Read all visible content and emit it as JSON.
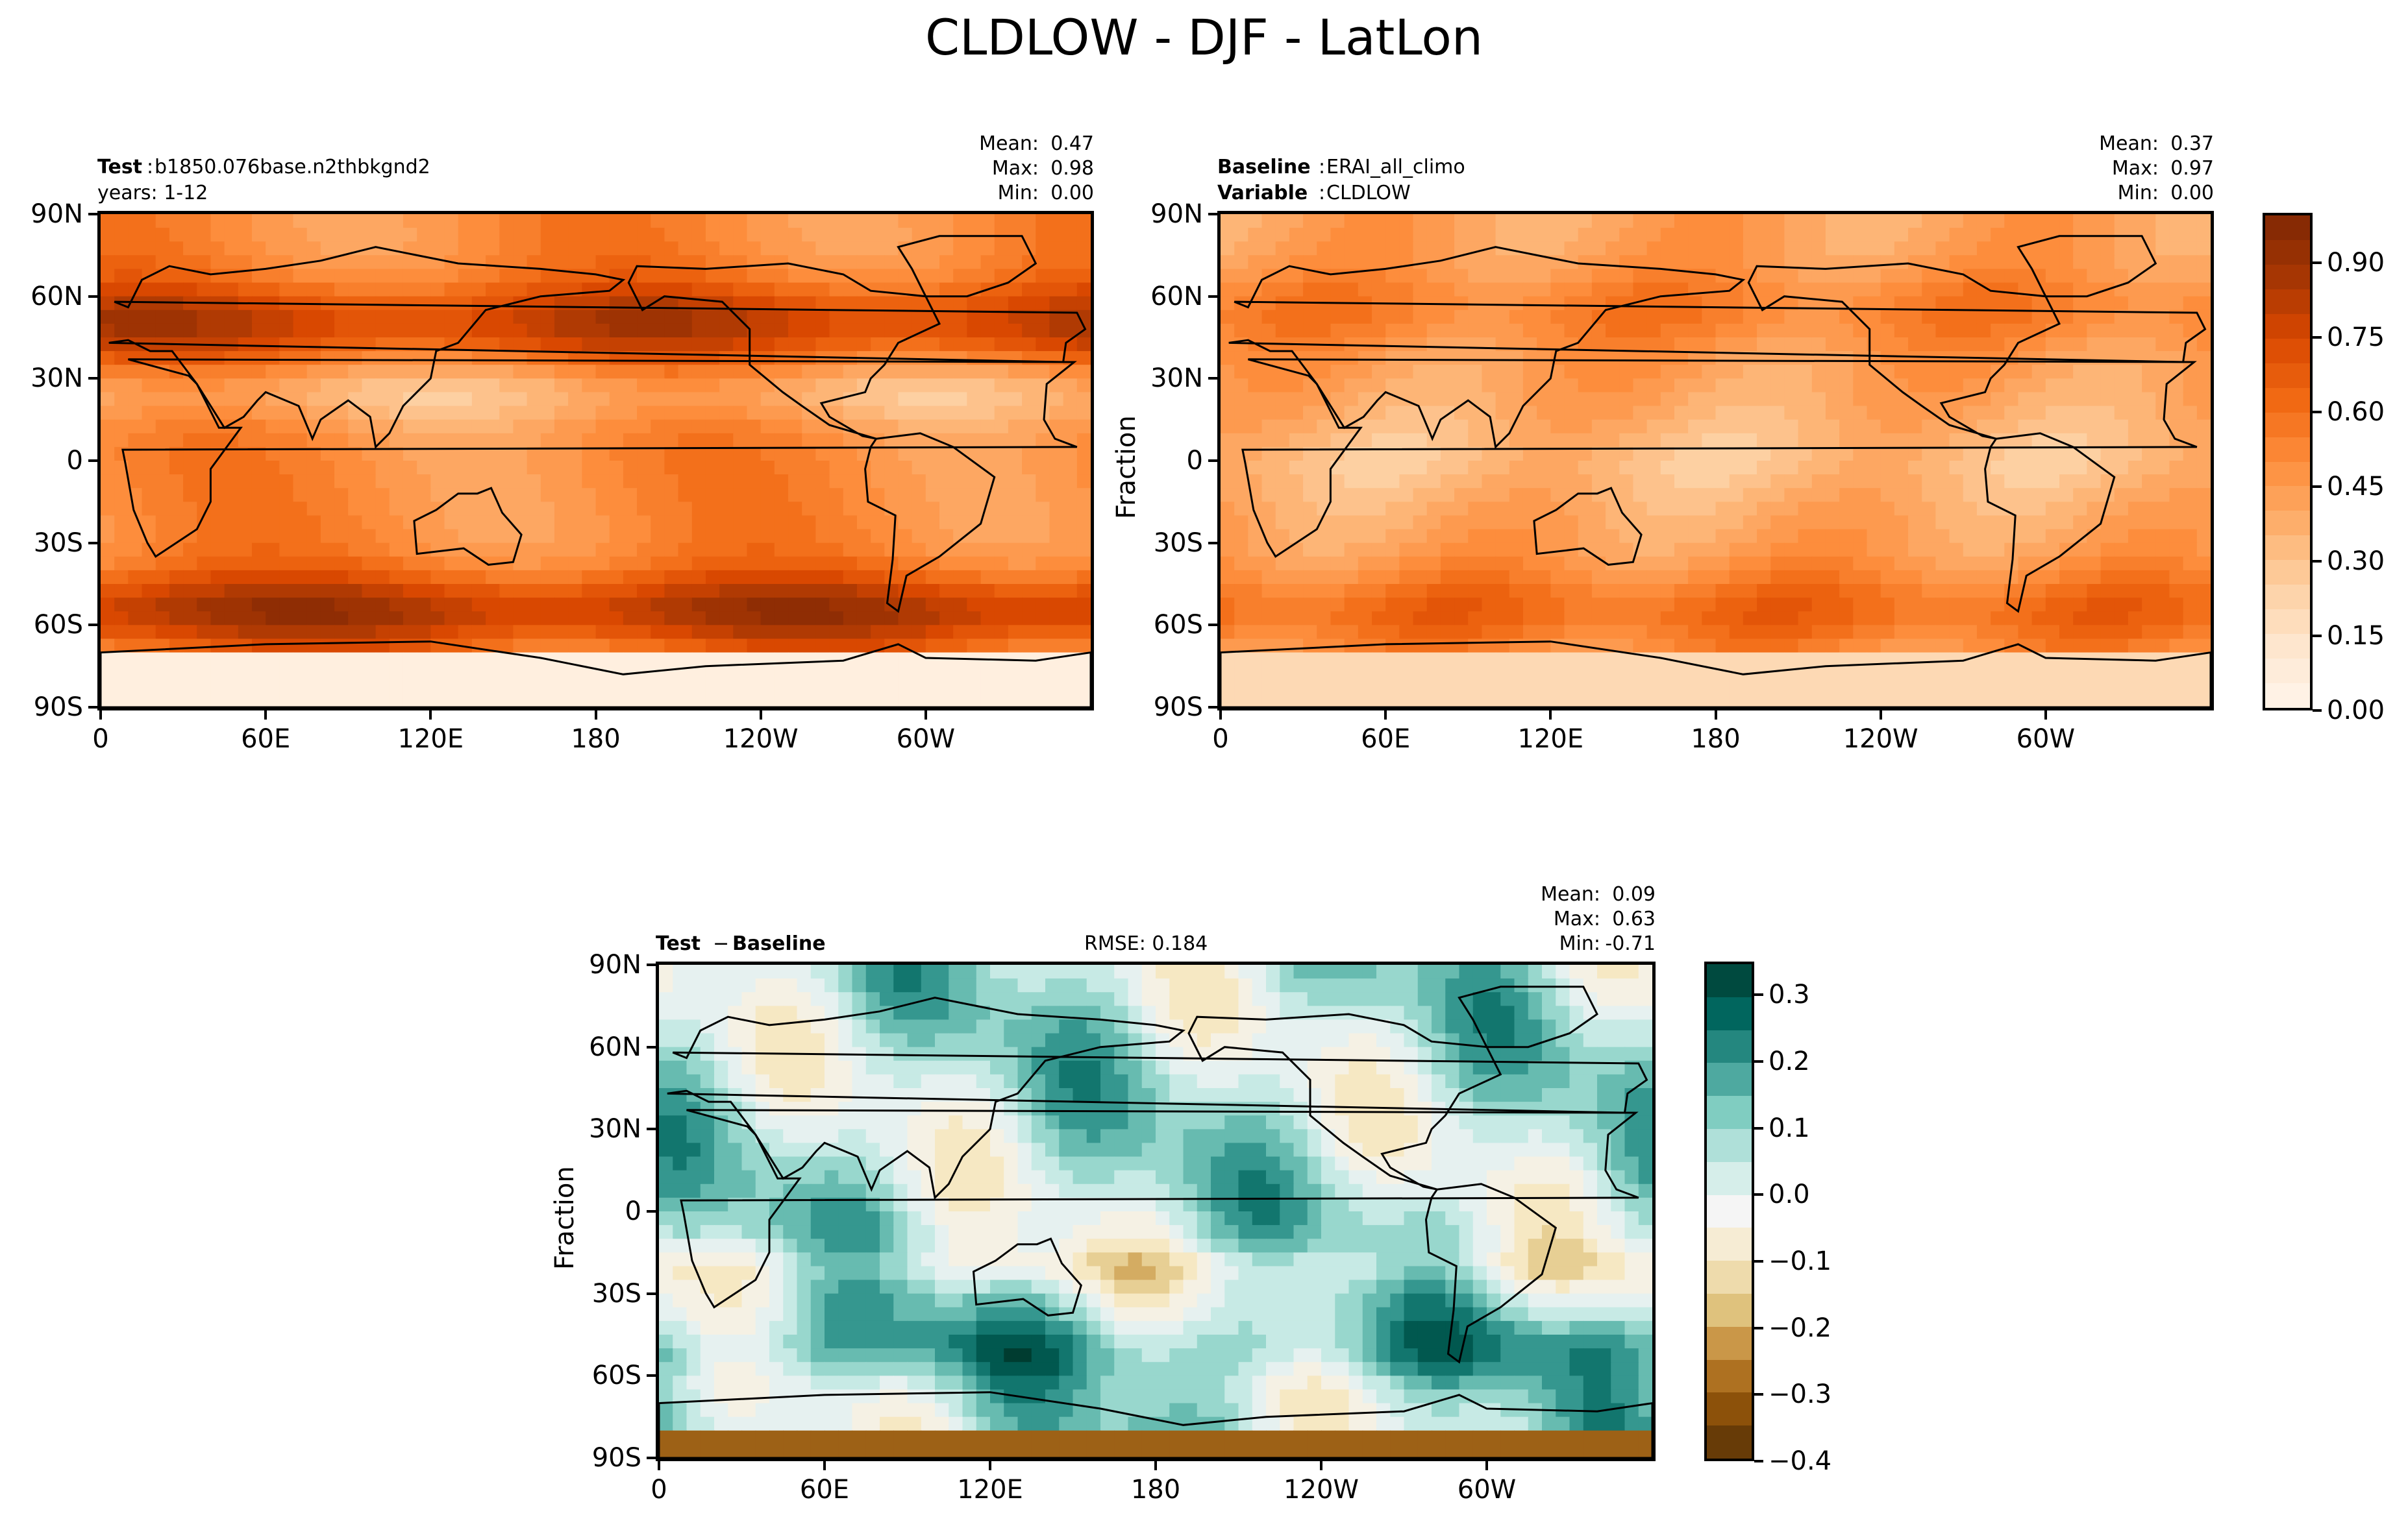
{
  "figure_title": "CLDLOW - DJF - LatLon",
  "chart_data": [
    {
      "type": "heatmap",
      "panel": "test",
      "header": {
        "label1": "Test",
        "value1": "b1850.076base.n2thbkgnd2",
        "line2": "years: 1-12"
      },
      "stats": {
        "mean_label": "Mean:",
        "mean": "0.47",
        "max_label": "Max:",
        "max": "0.98",
        "min_label": "Min:",
        "min": "0.00"
      },
      "x_ticks": [
        "0",
        "60E",
        "120E",
        "180",
        "120W",
        "60W"
      ],
      "y_ticks": [
        "90N",
        "60N",
        "30N",
        "0",
        "30S",
        "60S",
        "90S"
      ],
      "xlim": [
        0,
        360
      ],
      "ylim": [
        -90,
        90
      ],
      "colormap": "Oranges",
      "zlim": [
        0,
        1
      ]
    },
    {
      "type": "heatmap",
      "panel": "baseline",
      "header": {
        "label1": "Baseline",
        "value1": "ERAI_all_climo",
        "label2": "Variable",
        "value2": "CLDLOW"
      },
      "stats": {
        "mean_label": "Mean:",
        "mean": "0.37",
        "max_label": "Max:",
        "max": "0.97",
        "min_label": "Min:",
        "min": "0.00"
      },
      "x_ticks": [
        "0",
        "60E",
        "120E",
        "180",
        "120W",
        "60W"
      ],
      "y_ticks": [
        "90N",
        "60N",
        "30N",
        "0",
        "30S",
        "60S",
        "90S"
      ],
      "ylabel": "Fraction",
      "xlim": [
        0,
        360
      ],
      "ylim": [
        -90,
        90
      ],
      "colorbar": {
        "ticks": [
          "0.90",
          "0.75",
          "0.60",
          "0.45",
          "0.30",
          "0.15",
          "0.00"
        ],
        "range": [
          0,
          1
        ],
        "levels": 20
      },
      "colormap": "Oranges",
      "zlim": [
        0,
        1
      ]
    },
    {
      "type": "heatmap",
      "panel": "difference",
      "header": {
        "label1": "Test",
        "minus": "−",
        "label2": "Baseline",
        "rmse": "RMSE: 0.184"
      },
      "stats": {
        "mean_label": "Mean:",
        "mean": "0.09",
        "max_label": "Max:",
        "max": "0.63",
        "min_label": "Min:",
        "min": "-0.71"
      },
      "x_ticks": [
        "0",
        "60E",
        "120E",
        "180",
        "120W",
        "60W"
      ],
      "y_ticks": [
        "90N",
        "60N",
        "30N",
        "0",
        "30S",
        "60S",
        "90S"
      ],
      "ylabel": "Fraction",
      "xlim": [
        0,
        360
      ],
      "ylim": [
        -90,
        90
      ],
      "colorbar": {
        "ticks": [
          "0.3",
          "0.2",
          "0.1",
          "0.0",
          "−0.1",
          "−0.2",
          "−0.3",
          "−0.4"
        ],
        "range": [
          -0.4,
          0.35
        ],
        "levels": 15
      },
      "colormap": "BrBG",
      "zlim": [
        -0.4,
        0.35
      ]
    }
  ],
  "colors": {
    "oranges": [
      "#fff5eb",
      "#fee6ce",
      "#fdd0a2",
      "#fdae6b",
      "#fd8d3c",
      "#f16913",
      "#d94801",
      "#a63603",
      "#7f2704"
    ],
    "brbg": [
      "#543005",
      "#8c510a",
      "#bf812d",
      "#dfc27d",
      "#f6e8c3",
      "#f5f5f5",
      "#c7eae5",
      "#80cdc1",
      "#35978f",
      "#01665e",
      "#003c30"
    ]
  }
}
